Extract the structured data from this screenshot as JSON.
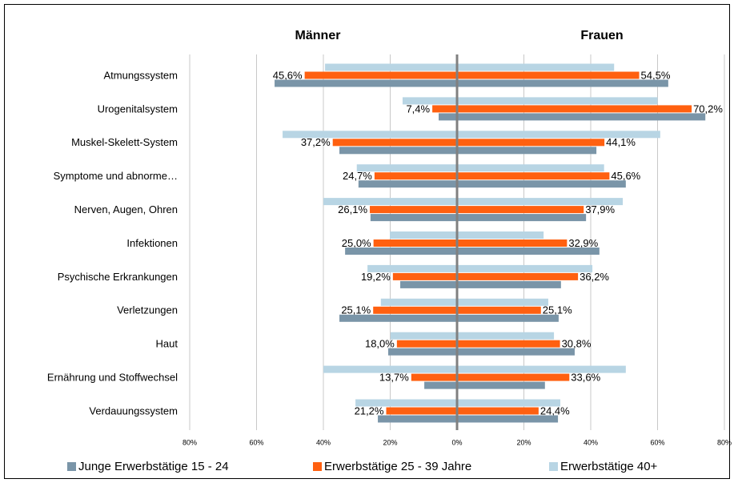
{
  "chart_data": {
    "type": "butterfly",
    "groups": [
      "Männer",
      "Frauen"
    ],
    "categories": [
      "Atmungssystem",
      "Urogenitalsystem",
      "Muskel-Skelett-System",
      "Symptome und abnorme…",
      "Nerven, Augen, Ohren",
      "Infektionen",
      "Psychische Erkrankungen",
      "Verletzungen",
      "Haut",
      "Ernährung und Stoffwechsel",
      "Verdauungssystem"
    ],
    "xlim": [
      0,
      80
    ],
    "xticks": [
      {
        "value": 0,
        "label": "0%"
      },
      {
        "value": 20,
        "label": "20%"
      },
      {
        "value": 40,
        "label": "40%"
      },
      {
        "value": 60,
        "label": "60%"
      },
      {
        "value": 80,
        "label": "80%"
      }
    ],
    "grid": true,
    "legend": "bottom",
    "series": [
      {
        "name": "Junge Erwerbstätige 15 - 24",
        "color": "#7a95a8",
        "left": [
          54.6,
          5.5,
          35.2,
          29.5,
          25.9,
          33.5,
          17,
          35.2,
          20.6,
          9.8,
          23.7
        ],
        "right": [
          63.2,
          74.3,
          41.7,
          50.5,
          38.6,
          42.6,
          31.1,
          30.4,
          35.2,
          26.3,
          30.2
        ]
      },
      {
        "name": "Erwerbstätige 25 - 39 Jahre",
        "color": "#ff6010",
        "left": [
          45.6,
          7.4,
          37.2,
          24.7,
          26.1,
          25.0,
          19.2,
          25.1,
          18.0,
          13.7,
          21.2
        ],
        "left_labels": [
          "45,6%",
          "7,4%",
          "37,2%",
          "24,7%",
          "26,1%",
          "25,0%",
          "19,2%",
          "25,1%",
          "18,0%",
          "13,7%",
          "21,2%"
        ],
        "right": [
          54.5,
          70.2,
          44.1,
          45.6,
          37.9,
          32.9,
          36.2,
          25.1,
          30.8,
          33.6,
          24.4
        ],
        "right_labels": [
          "54,5%",
          "70,2%",
          "44,1%",
          "45,6%",
          "37,9%",
          "32,9%",
          "36,2%",
          "25,1%",
          "30,8%",
          "33,6%",
          "24,4%"
        ]
      },
      {
        "name": "Erwerbstätige 40+",
        "color": "#b8d5e4",
        "left": [
          39.5,
          16.3,
          52.2,
          30,
          40,
          20.1,
          26.8,
          22.8,
          19.9,
          40,
          30.4
        ],
        "right": [
          47,
          60,
          60.8,
          44,
          49.6,
          25.9,
          40.5,
          27.3,
          29,
          50.5,
          30.9
        ]
      }
    ]
  }
}
